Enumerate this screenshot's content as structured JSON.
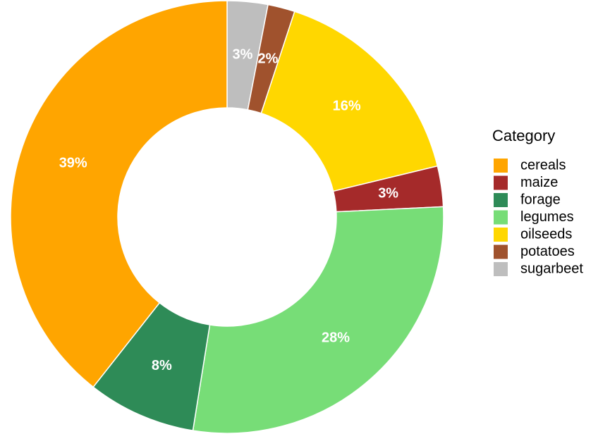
{
  "chart_data": {
    "type": "donut",
    "categories": [
      "sugarbeet",
      "potatoes",
      "oilseeds",
      "maize",
      "legumes",
      "forage",
      "cereals"
    ],
    "values": [
      3,
      2,
      16,
      3,
      28,
      8,
      39
    ],
    "value_labels": [
      "3%",
      "2%",
      "16%",
      "3%",
      "28%",
      "8%",
      "39%"
    ],
    "colors": [
      "#bebebe",
      "#a0522d",
      "#ffd700",
      "#a52a2a",
      "#77dd77",
      "#2e8b57",
      "#ffa500"
    ],
    "legend_title": "Category",
    "legend": [
      "cereals",
      "maize",
      "forage",
      "legumes",
      "oilseeds",
      "potatoes",
      "sugarbeet"
    ],
    "legend_position": "right"
  }
}
